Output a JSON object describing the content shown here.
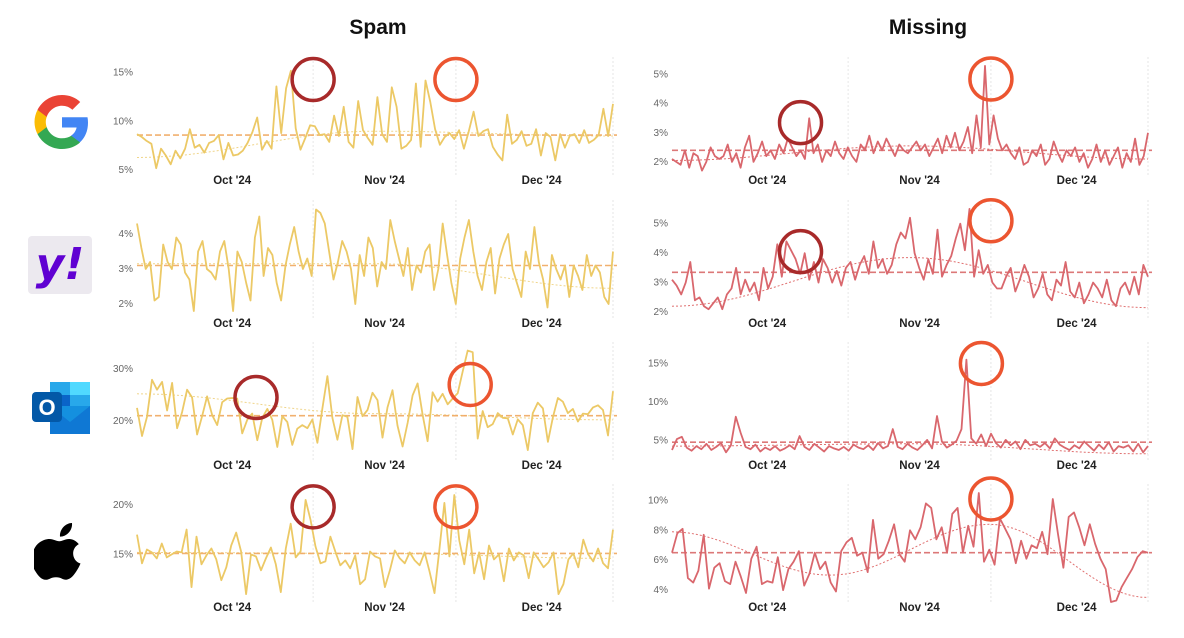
{
  "titles": {
    "spam": "Spam",
    "missing": "Missing"
  },
  "providers": [
    "google",
    "yahoo",
    "outlook",
    "apple"
  ],
  "logo_texts": {
    "yahoo": "y!",
    "outlook": "O"
  },
  "colors": {
    "spam_line": "#ecc966",
    "spam_avg": "#f0a860",
    "spam_trend": "#f0d58a",
    "missing_line": "#d9676d",
    "missing_avg": "#d96a6a",
    "missing_trend": "#e07070",
    "circle_dark": "#a82a2a",
    "circle_light": "#ec5530",
    "month_sep": "#e6e6e6"
  },
  "chart_data": [
    {
      "id": "google-spam",
      "type": "line",
      "provider": "google",
      "metric": "Spam",
      "x_labels": [
        "Oct '24",
        "Nov '24",
        "Dec '24"
      ],
      "y_ticks": [
        {
          "v": 15,
          "label": "15%"
        },
        {
          "v": 10,
          "label": "10%"
        },
        {
          "v": 5,
          "label": "5%"
        }
      ],
      "ylim": [
        4.5,
        16
      ],
      "average": 8.6,
      "trend": [
        6.3,
        9.0,
        8.5
      ],
      "values": [
        8.7,
        8.4,
        8.0,
        7.7,
        5.2,
        7.2,
        6.5,
        5.6,
        7.0,
        6.2,
        7.2,
        9.2,
        7.3,
        7.6,
        6.8,
        7.8,
        8.0,
        8.6,
        6.1,
        7.8,
        6.5,
        6.6,
        7.0,
        7.8,
        8.9,
        10.4,
        7.1,
        8.0,
        7.2,
        13.6,
        8.8,
        13.4,
        15.2,
        9.3,
        7.1,
        8.3,
        9.6,
        9.5,
        8.6,
        8.7,
        7.9,
        10.6,
        8.5,
        11.5,
        7.9,
        7.3,
        12.1,
        9.1,
        8.3,
        7.6,
        12.5,
        8.7,
        7.9,
        13.5,
        11.5,
        7.2,
        7.5,
        8.1,
        13.9,
        7.4,
        14.2,
        12.0,
        9.2,
        7.6,
        8.4,
        8.8,
        8.2,
        9.1,
        7.2,
        9.0,
        11.0,
        8.5,
        9.0,
        9.2,
        7.4,
        6.6,
        6.0,
        10.7,
        7.7,
        8.1,
        9.0,
        7.5,
        7.7,
        9.2,
        6.5,
        8.8,
        8.4,
        6.0,
        8.7,
        7.3,
        8.5,
        8.7,
        7.8,
        9.1,
        7.8,
        8.1,
        8.6,
        11.3,
        8.5,
        11.8
      ],
      "circles": [
        {
          "at": 0.37,
          "v": 14.3,
          "color": "dark"
        },
        {
          "at": 0.67,
          "v": 14.3,
          "color": "light"
        }
      ]
    },
    {
      "id": "google-missing",
      "type": "line",
      "provider": "google",
      "metric": "Missing",
      "x_labels": [
        "Oct '24",
        "Nov '24",
        "Dec '24"
      ],
      "y_ticks": [
        {
          "v": 5,
          "label": "5%"
        },
        {
          "v": 4,
          "label": "4%"
        },
        {
          "v": 3,
          "label": "3%"
        },
        {
          "v": 2,
          "label": "2%"
        }
      ],
      "ylim": [
        1.55,
        5.4
      ],
      "average": 2.4,
      "trend": [
        2.05,
        2.55,
        2.1
      ],
      "values": [
        2.1,
        2.0,
        1.9,
        2.4,
        1.8,
        2.3,
        2.2,
        1.7,
        2.0,
        2.5,
        2.2,
        2.1,
        2.2,
        2.6,
        2.0,
        2.3,
        1.8,
        2.5,
        2.9,
        2.0,
        2.3,
        2.7,
        2.2,
        2.4,
        2.1,
        2.6,
        2.3,
        2.8,
        2.5,
        2.2,
        2.4,
        2.1,
        3.5,
        2.3,
        2.6,
        2.0,
        2.4,
        2.2,
        2.7,
        2.3,
        2.1,
        2.5,
        2.2,
        2.0,
        2.6,
        2.4,
        2.9,
        2.3,
        2.7,
        2.4,
        2.8,
        2.5,
        2.2,
        2.6,
        2.4,
        2.3,
        2.5,
        2.7,
        2.4,
        2.6,
        2.2,
        2.5,
        2.8,
        2.3,
        2.9,
        2.5,
        3.0,
        2.4,
        2.7,
        3.2,
        2.3,
        3.6,
        2.5,
        5.3,
        2.6,
        3.6,
        2.8,
        2.4,
        2.6,
        2.3,
        2.1,
        2.5,
        1.9,
        2.0,
        2.4,
        2.2,
        2.6,
        1.9,
        2.1,
        2.7,
        2.3,
        2.0,
        2.4,
        2.2,
        2.5,
        2.0,
        2.3,
        1.8,
        2.1,
        2.6,
        2.0,
        2.4,
        1.9,
        2.2,
        2.5,
        1.8,
        2.3,
        2.0,
        2.8,
        1.9,
        2.2,
        3.0
      ],
      "circles": [
        {
          "at": 0.27,
          "v": 3.35,
          "color": "dark"
        },
        {
          "at": 0.67,
          "v": 4.85,
          "color": "light"
        }
      ]
    },
    {
      "id": "yahoo-spam",
      "type": "line",
      "provider": "yahoo",
      "metric": "Spam",
      "x_labels": [
        "Oct '24",
        "Nov '24",
        "Dec '24"
      ],
      "y_ticks": [
        {
          "v": 4,
          "label": "4%"
        },
        {
          "v": 3,
          "label": "3%"
        },
        {
          "v": 2,
          "label": "2%"
        }
      ],
      "ylim": [
        1.6,
        4.8
      ],
      "average": 3.1,
      "trend": [
        3.15,
        3.15,
        2.45
      ],
      "values": [
        4.3,
        3.6,
        3.0,
        3.2,
        2.1,
        2.2,
        3.7,
        3.2,
        3.0,
        3.9,
        3.7,
        2.9,
        2.7,
        1.8,
        3.5,
        3.8,
        3.0,
        2.9,
        2.7,
        3.5,
        3.8,
        3.0,
        1.8,
        3.5,
        3.2,
        2.6,
        2.1,
        3.9,
        4.5,
        2.8,
        3.6,
        3.4,
        2.6,
        2.1,
        3.1,
        3.7,
        4.2,
        3.5,
        3.0,
        3.3,
        2.8,
        4.7,
        4.6,
        4.3,
        3.5,
        2.7,
        3.2,
        3.8,
        3.5,
        3.0,
        2.0,
        3.4,
        2.8,
        3.9,
        3.6,
        2.5,
        3.2,
        3.0,
        4.4,
        3.8,
        3.3,
        2.8,
        3.6,
        2.4,
        3.1,
        2.9,
        3.5,
        3.7,
        2.4,
        3.0,
        4.3,
        3.4,
        2.6,
        2.0,
        3.3,
        3.9,
        4.4,
        3.5,
        2.8,
        2.4,
        3.2,
        3.6,
        2.3,
        3.3,
        3.7,
        4.0,
        3.0,
        2.6,
        2.2,
        3.5,
        3.0,
        4.2,
        3.2,
        2.7,
        1.9,
        3.4,
        3.0,
        2.7,
        3.1,
        2.2,
        3.1,
        2.8,
        2.4,
        3.4,
        2.8,
        3.1,
        2.9,
        2.2,
        2.0,
        3.5
      ],
      "circles": []
    },
    {
      "id": "yahoo-missing",
      "type": "line",
      "provider": "yahoo",
      "metric": "Missing",
      "x_labels": [
        "Oct '24",
        "Nov '24",
        "Dec '24"
      ],
      "y_ticks": [
        {
          "v": 5,
          "label": "5%"
        },
        {
          "v": 4,
          "label": "4%"
        },
        {
          "v": 3,
          "label": "3%"
        },
        {
          "v": 2,
          "label": "2%"
        }
      ],
      "ylim": [
        1.8,
        5.6
      ],
      "average": 3.35,
      "trend": [
        2.2,
        3.85,
        2.15
      ],
      "values": [
        3.1,
        2.9,
        2.6,
        3.0,
        3.7,
        2.4,
        2.5,
        2.2,
        2.1,
        2.3,
        2.5,
        2.1,
        2.6,
        2.8,
        3.5,
        2.6,
        3.1,
        2.7,
        3.0,
        2.4,
        3.5,
        2.8,
        3.2,
        4.3,
        3.2,
        4.4,
        4.1,
        3.8,
        3.3,
        4.0,
        3.1,
        3.7,
        3.0,
        3.8,
        3.5,
        3.0,
        3.4,
        2.9,
        3.5,
        3.7,
        3.1,
        3.6,
        3.9,
        3.3,
        4.4,
        3.5,
        3.8,
        3.3,
        3.6,
        4.3,
        4.7,
        4.5,
        5.2,
        4.0,
        3.5,
        3.1,
        3.8,
        3.3,
        4.8,
        3.2,
        3.6,
        3.9,
        4.5,
        5.0,
        4.1,
        5.5,
        3.2,
        4.1,
        3.3,
        3.6,
        3.0,
        2.8,
        2.8,
        3.2,
        3.5,
        2.7,
        3.1,
        3.6,
        3.2,
        2.5,
        2.8,
        3.3,
        2.6,
        2.4,
        3.1,
        2.9,
        3.7,
        2.7,
        2.5,
        3.0,
        2.3,
        2.6,
        3.0,
        2.8,
        2.5,
        3.1,
        2.4,
        2.2,
        2.8,
        3.0,
        2.6,
        3.2,
        2.6,
        3.6,
        3.2
      ],
      "circles": [
        {
          "at": 0.27,
          "v": 4.05,
          "color": "dark"
        },
        {
          "at": 0.67,
          "v": 5.1,
          "color": "light"
        }
      ]
    },
    {
      "id": "outlook-spam",
      "type": "line",
      "provider": "outlook",
      "metric": "Spam",
      "x_labels": [
        "Oct '24",
        "Nov '24",
        "Dec '24"
      ],
      "y_ticks": [
        {
          "v": 30,
          "label": "30%"
        },
        {
          "v": 20,
          "label": "20%"
        }
      ],
      "ylim": [
        12.5,
        34
      ],
      "average": 21,
      "trend": [
        25.2,
        21.4,
        20.2
      ],
      "values": [
        22.5,
        17.1,
        20.8,
        27.9,
        26.0,
        27.5,
        22.0,
        27.3,
        18.6,
        21.7,
        26.0,
        24.5,
        17.4,
        20.9,
        24.7,
        21.1,
        19.2,
        23.6,
        24.3,
        24.4,
        24.3,
        17.6,
        20.2,
        21.4,
        16.3,
        20.6,
        22.3,
        20.2,
        15.0,
        20.9,
        19.8,
        15.4,
        18.5,
        19.2,
        18.6,
        20.3,
        15.8,
        22.4,
        28.6,
        20.6,
        16.4,
        21.1,
        20.8,
        14.6,
        24.6,
        20.9,
        22.1,
        25.4,
        24.0,
        16.8,
        22.6,
        25.9,
        19.1,
        15.1,
        19.6,
        24.9,
        27.2,
        21.2,
        16.1,
        25.5,
        23.7,
        25.2,
        23.2,
        24.3,
        25.3,
        29.5,
        33.5,
        33.2,
        16.6,
        21.9,
        18.8,
        19.4,
        21.5,
        20.6,
        20.5,
        17.4,
        20.3,
        19.2,
        14.4,
        21.5,
        23.5,
        22.4,
        16.0,
        20.7,
        24.4,
        23.7,
        21.5,
        22.3,
        19.9,
        21.4,
        21.3,
        22.6,
        23.0,
        22.1,
        17.2,
        25.7
      ],
      "circles": [
        {
          "at": 0.25,
          "v": 24.5,
          "color": "dark"
        },
        {
          "at": 0.7,
          "v": 27.0,
          "color": "light"
        }
      ]
    },
    {
      "id": "outlook-missing",
      "type": "line",
      "provider": "outlook",
      "metric": "Missing",
      "x_labels": [
        "Oct '24",
        "Nov '24",
        "Dec '24"
      ],
      "y_ticks": [
        {
          "v": 15,
          "label": "15%"
        },
        {
          "v": 10,
          "label": "10%"
        },
        {
          "v": 5,
          "label": "5%"
        }
      ],
      "ylim": [
        2.5,
        17
      ],
      "average": 4.8,
      "trend": [
        4.3,
        4.6,
        3.3
      ],
      "values": [
        3.8,
        5.2,
        5.5,
        4.1,
        3.7,
        4.3,
        3.9,
        4.6,
        3.8,
        4.2,
        4.7,
        3.5,
        4.4,
        8.1,
        6.0,
        4.2,
        3.9,
        4.5,
        3.6,
        4.1,
        3.8,
        4.3,
        3.7,
        4.0,
        4.4,
        3.9,
        5.6,
        4.2,
        3.8,
        4.6,
        4.1,
        3.6,
        4.3,
        4.0,
        3.8,
        4.2,
        3.7,
        4.5,
        4.1,
        3.9,
        4.4,
        3.8,
        4.7,
        4.0,
        4.3,
        6.5,
        4.2,
        3.9,
        4.6,
        4.1,
        3.8,
        4.4,
        5.1,
        4.0,
        8.2,
        4.9,
        4.1,
        4.5,
        5.0,
        6.5,
        15.5,
        5.3,
        4.6,
        5.8,
        4.3,
        5.9,
        4.7,
        4.1,
        5.1,
        4.4,
        4.9,
        3.9,
        5.1,
        4.4,
        4.6,
        4.2,
        4.7,
        4.0,
        5.3,
        4.5,
        4.1,
        3.8,
        4.4,
        4.0,
        4.9,
        4.3,
        3.7,
        4.5,
        3.9,
        4.8,
        3.6,
        4.3,
        4.1,
        4.4,
        3.6,
        4.6,
        3.5,
        4.3
      ],
      "circles": [
        {
          "at": 0.65,
          "v": 15.0,
          "color": "light"
        }
      ]
    },
    {
      "id": "apple-spam",
      "type": "line",
      "provider": "apple",
      "metric": "Spam",
      "x_labels": [
        "Oct '24",
        "Nov '24",
        "Dec '24"
      ],
      "y_ticks": [
        {
          "v": 20,
          "label": "20%"
        },
        {
          "v": 15,
          "label": "15%"
        }
      ],
      "ylim": [
        10.2,
        21.5
      ],
      "average": 15.1,
      "trend": [
        15.2,
        15.1,
        14.6
      ],
      "values": [
        17.0,
        14.1,
        15.5,
        15.2,
        14.6,
        16.1,
        14.7,
        15.0,
        15.3,
        15.2,
        17.5,
        11.7,
        16.8,
        14.0,
        14.9,
        15.6,
        14.5,
        12.4,
        13.7,
        15.9,
        17.2,
        15.3,
        11.0,
        15.0,
        14.8,
        13.4,
        14.6,
        15.7,
        14.0,
        11.2,
        15.6,
        18.1,
        14.7,
        15.3,
        20.5,
        18.5,
        15.8,
        14.1,
        14.3,
        16.8,
        15.3,
        13.9,
        14.4,
        13.6,
        14.9,
        12.0,
        12.5,
        15.3,
        14.8,
        14.6,
        11.7,
        13.4,
        15.4,
        14.6,
        14.1,
        15.2,
        14.4,
        13.9,
        15.2,
        13.3,
        11.1,
        15.6,
        20.2,
        14.8,
        21.0,
        16.4,
        14.0,
        17.5,
        13.1,
        15.2,
        12.5,
        15.9,
        14.5,
        15.0,
        12.3,
        15.6,
        14.4,
        15.2,
        14.9,
        12.6,
        15.2,
        14.5,
        13.7,
        14.2,
        15.2,
        11.0,
        12.0,
        14.5,
        15.1,
        13.7,
        16.5,
        15.0,
        14.3,
        15.6,
        14.1,
        13.6,
        17.5
      ],
      "circles": [
        {
          "at": 0.37,
          "v": 19.8,
          "color": "dark"
        },
        {
          "at": 0.67,
          "v": 19.8,
          "color": "light"
        }
      ]
    },
    {
      "id": "apple-missing",
      "type": "line",
      "provider": "apple",
      "metric": "Missing",
      "x_labels": [
        "Oct '24",
        "Nov '24",
        "Dec '24"
      ],
      "y_ticks": [
        {
          "v": 10,
          "label": "10%"
        },
        {
          "v": 8,
          "label": "8%"
        },
        {
          "v": 6,
          "label": "6%"
        },
        {
          "v": 4,
          "label": "4%"
        }
      ],
      "ylim": [
        3.2,
        10.7
      ],
      "average": 6.5,
      "trend": [
        7.9,
        5.0,
        8.4,
        3.5
      ],
      "values": [
        6.5,
        7.8,
        8.1,
        4.8,
        4.5,
        5.3,
        7.7,
        4.1,
        5.5,
        5.8,
        4.6,
        4.4,
        5.9,
        4.9,
        3.8,
        6.1,
        6.9,
        4.4,
        4.6,
        4.5,
        6.2,
        4.0,
        5.4,
        5.9,
        6.6,
        4.3,
        5.1,
        6.5,
        5.4,
        5.9,
        4.5,
        3.9,
        6.6,
        7.2,
        7.5,
        6.3,
        6.5,
        5.2,
        8.7,
        6.1,
        6.4,
        7.3,
        8.4,
        6.4,
        5.9,
        8.0,
        7.4,
        8.2,
        9.8,
        9.5,
        7.4,
        8.2,
        6.5,
        9.1,
        9.5,
        6.5,
        8.3,
        6.9,
        10.5,
        5.9,
        6.7,
        5.7,
        8.8,
        8.1,
        7.4,
        5.8,
        7.3,
        6.1,
        7.0,
        6.8,
        7.9,
        6.4,
        10.1,
        7.7,
        5.5,
        8.9,
        9.2,
        8.2,
        7.0,
        8.4,
        7.1,
        6.1,
        5.4,
        3.2,
        3.3,
        4.2,
        4.8,
        5.4,
        6.2,
        6.6,
        6.5
      ],
      "circles": [
        {
          "at": 0.67,
          "v": 10.1,
          "color": "light"
        }
      ]
    }
  ]
}
